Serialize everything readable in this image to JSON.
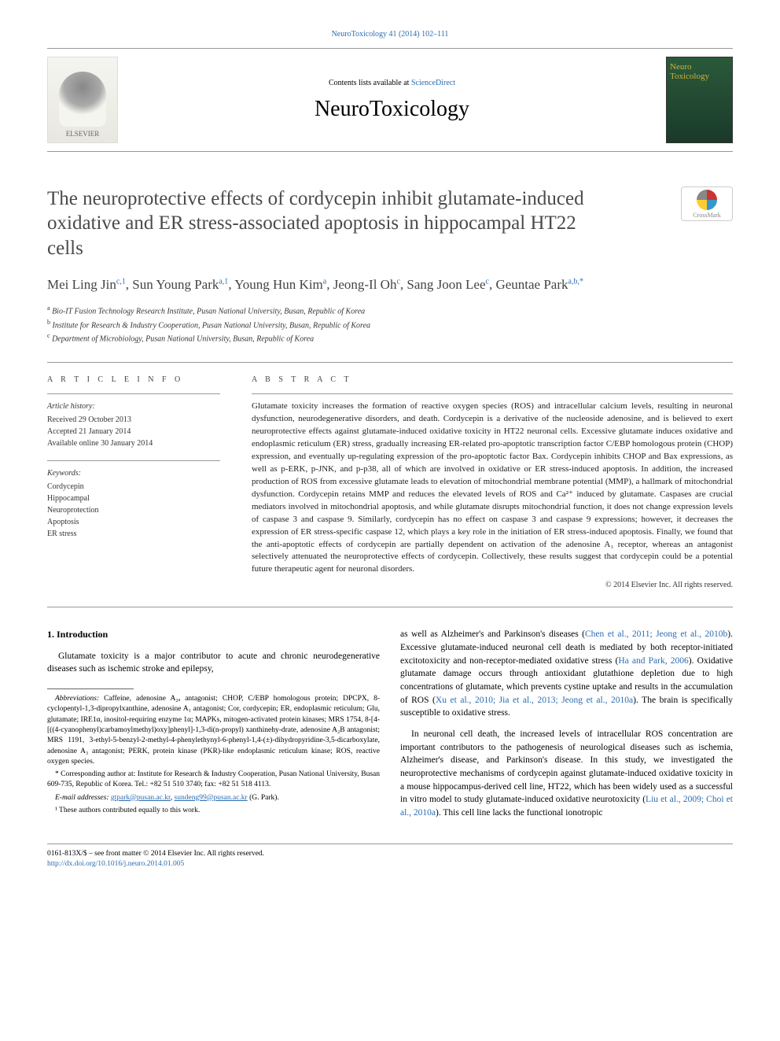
{
  "journalLine": "NeuroToxicology 41 (2014) 102–111",
  "header": {
    "contentsPrefix": "Contents lists available at ",
    "contentsLink": "ScienceDirect",
    "journalName": "NeuroToxicology",
    "elsevierLabel": "ELSEVIER",
    "coverLine1": "Neuro",
    "coverLine2": "Toxicology"
  },
  "crossmark": "CrossMark",
  "title": "The neuroprotective effects of cordycepin inhibit glutamate-induced oxidative and ER stress-associated apoptosis in hippocampal HT22 cells",
  "authorsHtmlParts": [
    {
      "name": "Mei Ling Jin",
      "aff": "c,1"
    },
    {
      "name": "Sun Young Park",
      "aff": "a,1"
    },
    {
      "name": "Young Hun Kim",
      "aff": "a"
    },
    {
      "name": "Jeong-Il Oh",
      "aff": "c"
    },
    {
      "name": "Sang Joon Lee",
      "aff": "c"
    },
    {
      "name": "Geuntae Park",
      "aff": "a,b,*"
    }
  ],
  "affiliations": [
    {
      "key": "a",
      "text": "Bio-IT Fusion Technology Research Institute, Pusan National University, Busan, Republic of Korea"
    },
    {
      "key": "b",
      "text": "Institute for Research & Industry Cooperation, Pusan National University, Busan, Republic of Korea"
    },
    {
      "key": "c",
      "text": "Department of Microbiology, Pusan National University, Busan, Republic of Korea"
    }
  ],
  "infoLabel": "A R T I C L E   I N F O",
  "abstractLabel": "A B S T R A C T",
  "history": {
    "head": "Article history:",
    "received": "Received 29 October 2013",
    "accepted": "Accepted 21 January 2014",
    "online": "Available online 30 January 2014"
  },
  "keywords": {
    "head": "Keywords:",
    "list": [
      "Cordycepin",
      "Hippocampal",
      "Neuroprotection",
      "Apoptosis",
      "ER stress"
    ]
  },
  "abstract": "Glutamate toxicity increases the formation of reactive oxygen species (ROS) and intracellular calcium levels, resulting in neuronal dysfunction, neurodegenerative disorders, and death. Cordycepin is a derivative of the nucleoside adenosine, and is believed to exert neuroprotective effects against glutamate-induced oxidative toxicity in HT22 neuronal cells. Excessive glutamate induces oxidative and endoplasmic reticulum (ER) stress, gradually increasing ER-related pro-apoptotic transcription factor C/EBP homologous protein (CHOP) expression, and eventually up-regulating expression of the pro-apoptotic factor Bax. Cordycepin inhibits CHOP and Bax expressions, as well as p-ERK, p-JNK, and p-p38, all of which are involved in oxidative or ER stress-induced apoptosis. In addition, the increased production of ROS from excessive glutamate leads to elevation of mitochondrial membrane potential (MMP), a hallmark of mitochondrial dysfunction. Cordycepin retains MMP and reduces the elevated levels of ROS and Ca²⁺ induced by glutamate. Caspases are crucial mediators involved in mitochondrial apoptosis, and while glutamate disrupts mitochondrial function, it does not change expression levels of caspase 3 and caspase 9. Similarly, cordycepin has no effect on caspase 3 and caspase 9 expressions; however, it decreases the expression of ER stress-specific caspase 12, which plays a key role in the initiation of ER stress-induced apoptosis. Finally, we found that the anti-apoptotic effects of cordycepin are partially dependent on activation of the adenosine A₁ receptor, whereas an antagonist selectively attenuated the neuroprotective effects of cordycepin. Collectively, these results suggest that cordycepin could be a potential future therapeutic agent for neuronal disorders.",
  "copyright": "© 2014 Elsevier Inc. All rights reserved.",
  "bodyHeading": "1. Introduction",
  "leftCol": {
    "p1": "Glutamate toxicity is a major contributor to acute and chronic neurodegenerative diseases such as ischemic stroke and epilepsy,",
    "abbrevHead": "Abbreviations:",
    "abbrev": " Caffeine, adenosine A₂ₐ antagonist; CHOP, C/EBP homologous protein; DPCPX, 8-cyclopentyl-1,3-dipropylxanthine, adenosine A₁ antagonist; Cor, cordycepin; ER, endoplasmic reticulum; Glu, glutamate; IRE1α, inositol-requiring enzyme 1α; MAPKs, mitogen-activated protein kinases; MRS 1754, 8-[4-[((4-cyanophenyl)carbamoylmethyl)oxy]phenyl]-1,3-di(n-propyl) xanthinehy-drate, adenosine A₂B antagonist; MRS 1191, 3-ethyl-5-benzyl-2-methyl-4-phenylethynyl-6-phenyl-1,4-(±)-dihydropyridine-3,5-dicarboxylate, adenosine A₃ antagonist; PERK, protein kinase (PKR)-like endoplasmic reticulum kinase; ROS, reactive oxygen species.",
    "corrHead": "* Corresponding author at:",
    "corr": " Institute for Research & Industry Cooperation, Pusan National University, Busan 609-735, Republic of Korea. Tel.: +82 51 510 3740; fax: +82 51 518 4113.",
    "emailHead": "E-mail addresses:",
    "email1": "gtpark@pusan.ac.kr",
    "email2": "sundeng99@pusan.ac.kr",
    "emailTail": " (G. Park).",
    "equal": "¹ These authors contributed equally to this work."
  },
  "rightCol": {
    "p1a": "as well as Alzheimer's and Parkinson's diseases (",
    "p1link": "Chen et al., 2011; Jeong et al., 2010b",
    "p1b": "). Excessive glutamate-induced neuronal cell death is mediated by both receptor-initiated excitotoxicity and non-receptor-mediated oxidative stress (",
    "p1link2": "Ha and Park, 2006",
    "p1c": "). Oxidative glutamate damage occurs through antioxidant glutathione depletion due to high concentrations of glutamate, which prevents cystine uptake and results in the accumulation of ROS (",
    "p1link3": "Xu et al., 2010; Jia et al., 2013; Jeong et al., 2010a",
    "p1d": "). The brain is specifically susceptible to oxidative stress.",
    "p2a": "In neuronal cell death, the increased levels of intracellular ROS concentration are important contributors to the pathogenesis of neurological diseases such as ischemia, Alzheimer's disease, and Parkinson's disease. In this study, we investigated the neuroprotective mechanisms of cordycepin against glutamate-induced oxidative toxicity in a mouse hippocampus-derived cell line, HT22, which has been widely used as a successful in vitro model to study glutamate-induced oxidative neurotoxicity (",
    "p2link": "Liu et al., 2009; Choi et al., 2010a",
    "p2b": "). This cell line lacks the functional ionotropic"
  },
  "footer": {
    "issn": "0161-813X/$ – see front matter © 2014 Elsevier Inc. All rights reserved.",
    "doi": "http://dx.doi.org/10.1016/j.neuro.2014.01.005"
  }
}
